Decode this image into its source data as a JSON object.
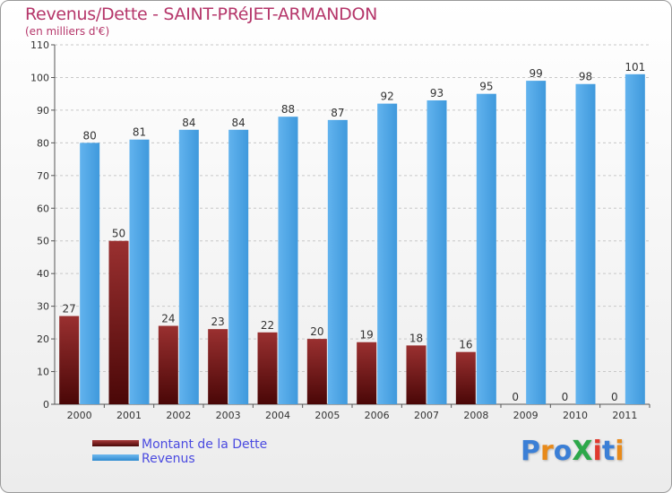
{
  "title": "Revenus/Dette - SAINT-PRéJET-ARMANDON",
  "subtitle": "(en milliers d'€)",
  "logo": {
    "text": "ProXiti",
    "colors": [
      "#3b7fd6",
      "#e88a1a",
      "#3b7fd6",
      "#2da84a",
      "#e03a2f",
      "#3b7fd6",
      "#e88a1a"
    ]
  },
  "chart_data": {
    "type": "bar",
    "categories": [
      "2000",
      "2001",
      "2002",
      "2003",
      "2004",
      "2005",
      "2006",
      "2007",
      "2008",
      "2009",
      "2010",
      "2011"
    ],
    "series": [
      {
        "name": "Montant de la Dette",
        "values": [
          27,
          50,
          24,
          23,
          22,
          20,
          19,
          18,
          16,
          0,
          0,
          0
        ],
        "color": "#7a1818"
      },
      {
        "name": "Revenus",
        "values": [
          80,
          81,
          84,
          84,
          88,
          87,
          92,
          93,
          95,
          99,
          98,
          101
        ],
        "color": "#4aa3e6"
      }
    ],
    "ylim": [
      0,
      110
    ],
    "yticks": [
      0,
      10,
      20,
      30,
      40,
      50,
      60,
      70,
      80,
      90,
      100,
      110
    ],
    "grid": true,
    "legend": "bottom-left"
  }
}
